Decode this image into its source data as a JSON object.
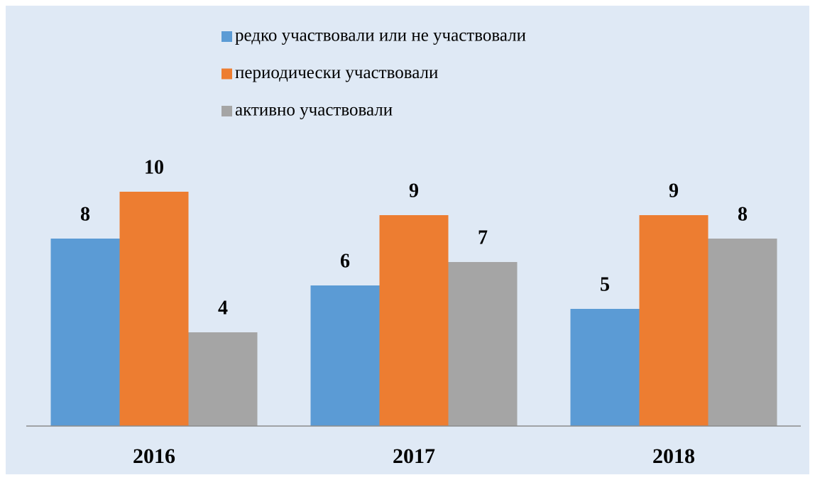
{
  "chart_data": {
    "type": "bar",
    "categories": [
      "2016",
      "2017",
      "2018"
    ],
    "series": [
      {
        "name": "редко участвовали или не участвовали",
        "color": "#5b9bd5",
        "values": [
          8,
          6,
          5
        ]
      },
      {
        "name": "периодически участвовали",
        "color": "#ed7d31",
        "values": [
          10,
          9,
          9
        ]
      },
      {
        "name": "активно участвовали",
        "color": "#a5a5a5",
        "values": [
          4,
          7,
          8
        ]
      }
    ],
    "legend": "top"
  }
}
